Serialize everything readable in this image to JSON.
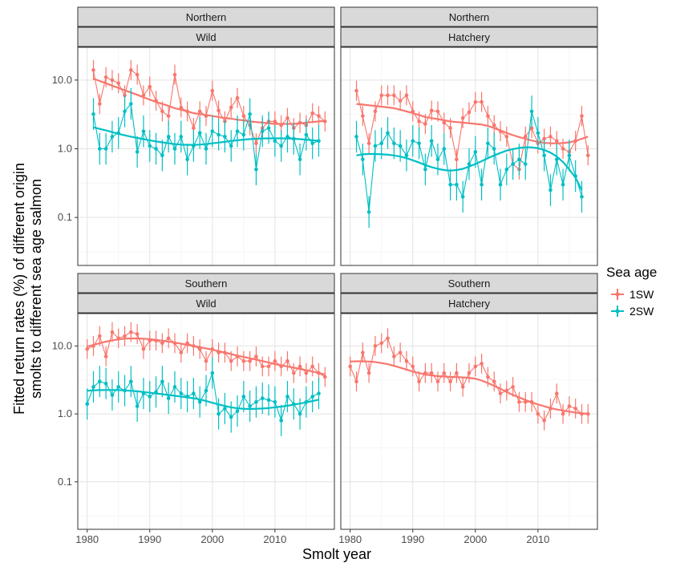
{
  "chart_data": {
    "type": "line",
    "ylabel_lines": [
      "Fitted return rates (%) of different origin",
      "smolts to different sea age salmon"
    ],
    "xlabel": "Smolt year",
    "x_ticks": [
      1980,
      1990,
      2000,
      2010
    ],
    "y_ticks": [
      0.1,
      1.0,
      10.0
    ],
    "y_tick_labels": [
      "0.1",
      "1.0",
      "10.0"
    ],
    "y_scale": "log10",
    "xlim": [
      1978.5,
      2019.5
    ],
    "ylim": [
      0.02,
      30
    ],
    "legend": {
      "title": "Sea age",
      "position": "right",
      "entries": [
        {
          "label": "1SW",
          "color": "#F8766D"
        },
        {
          "label": "2SW",
          "color": "#00BFC4"
        }
      ]
    },
    "panels": [
      {
        "region": "Northern",
        "origin": "Wild",
        "series": [
          {
            "name": "1SW",
            "color": "#F8766D",
            "x": [
              1981,
              1982,
              1983,
              1984,
              1985,
              1986,
              1987,
              1988,
              1989,
              1990,
              1991,
              1992,
              1993,
              1994,
              1995,
              1996,
              1997,
              1998,
              1999,
              2000,
              2001,
              2002,
              2003,
              2004,
              2005,
              2006,
              2007,
              2008,
              2009,
              2010,
              2011,
              2012,
              2013,
              2014,
              2015,
              2016,
              2017,
              2018
            ],
            "y": [
              14,
              4.5,
              11,
              10,
              9,
              6,
              14,
              12,
              6,
              8,
              5,
              3.5,
              3,
              12,
              4,
              3.5,
              2,
              3.5,
              3,
              7,
              3.6,
              2.5,
              4,
              5.5,
              3,
              2.2,
              1.2,
              2,
              2.5,
              2.5,
              2.2,
              2.8,
              2,
              2.4,
              2.2,
              3.3,
              3,
              2.5
            ],
            "trend": [
              10.5,
              9.7,
              9.0,
              8.3,
              7.7,
              7.1,
              6.6,
              6.1,
              5.6,
              5.2,
              4.8,
              4.5,
              4.2,
              3.9,
              3.7,
              3.5,
              3.3,
              3.2,
              3.1,
              3.0,
              2.9,
              2.8,
              2.75,
              2.65,
              2.6,
              2.5,
              2.45,
              2.4,
              2.35,
              2.3,
              2.3,
              2.3,
              2.3,
              2.35,
              2.4,
              2.45,
              2.5,
              2.55
            ]
          },
          {
            "name": "2SW",
            "color": "#00BFC4",
            "x": [
              1981,
              1982,
              1983,
              1984,
              1985,
              1986,
              1987,
              1988,
              1989,
              1990,
              1991,
              1992,
              1993,
              1994,
              1995,
              1996,
              1997,
              1998,
              1999,
              2000,
              2001,
              2002,
              2003,
              2004,
              2005,
              2006,
              2007,
              2008,
              2009,
              2010,
              2011,
              2012,
              2013,
              2014,
              2015,
              2016,
              2017
            ],
            "y": [
              3.2,
              1.0,
              1.0,
              1.5,
              1.7,
              3.5,
              4.5,
              0.9,
              1.8,
              1.1,
              1.0,
              0.8,
              1.5,
              1.0,
              1.5,
              0.7,
              1.1,
              1.7,
              1.0,
              1.8,
              1.6,
              1.5,
              1.1,
              1.8,
              1.6,
              3.2,
              0.5,
              1.8,
              2.0,
              1.3,
              1.1,
              1.5,
              1.4,
              0.7,
              1.6,
              1.2,
              1.3
            ],
            "trend": [
              2.05,
              1.95,
              1.85,
              1.75,
              1.65,
              1.57,
              1.5,
              1.44,
              1.38,
              1.33,
              1.28,
              1.24,
              1.2,
              1.17,
              1.15,
              1.14,
              1.14,
              1.15,
              1.17,
              1.2,
              1.23,
              1.26,
              1.3,
              1.33,
              1.36,
              1.38,
              1.4,
              1.41,
              1.42,
              1.42,
              1.42,
              1.41,
              1.4,
              1.38,
              1.36,
              1.33,
              1.3
            ]
          }
        ]
      },
      {
        "region": "Northern",
        "origin": "Hatchery",
        "series": [
          {
            "name": "1SW",
            "color": "#F8766D",
            "x": [
              1981,
              1982,
              1983,
              1984,
              1985,
              1986,
              1987,
              1988,
              1989,
              1990,
              1991,
              1992,
              1993,
              1994,
              1995,
              1996,
              1997,
              1998,
              1999,
              2000,
              2001,
              2002,
              2003,
              2004,
              2005,
              2006,
              2007,
              2008,
              2009,
              2010,
              2011,
              2012,
              2013,
              2014,
              2015,
              2016,
              2017,
              2018
            ],
            "y": [
              7,
              3,
              1.2,
              3.5,
              6,
              6,
              6,
              5,
              6,
              3.5,
              2.5,
              2.3,
              3.6,
              3.5,
              2.4,
              2.0,
              0.7,
              2.8,
              3.4,
              4.8,
              4.8,
              3.0,
              2.2,
              1.8,
              1.5,
              0.6,
              0.5,
              1.5,
              2.0,
              1.2,
              1.4,
              1.5,
              1.3,
              1.0,
              0.9,
              1.3,
              3.0,
              0.8
            ],
            "trend": [
              4.5,
              4.4,
              4.3,
              4.2,
              4.1,
              4.0,
              3.9,
              3.7,
              3.5,
              3.3,
              3.1,
              2.9,
              2.8,
              2.7,
              2.6,
              2.5,
              2.45,
              2.4,
              2.35,
              2.3,
              2.25,
              2.15,
              2.0,
              1.85,
              1.7,
              1.58,
              1.48,
              1.4,
              1.32,
              1.26,
              1.22,
              1.2,
              1.2,
              1.21,
              1.24,
              1.3,
              1.4,
              1.5
            ]
          },
          {
            "name": "2SW",
            "color": "#00BFC4",
            "x": [
              1981,
              1982,
              1983,
              1984,
              1985,
              1986,
              1987,
              1988,
              1989,
              1990,
              1991,
              1992,
              1993,
              1994,
              1995,
              1996,
              1997,
              1998,
              1999,
              2000,
              2001,
              2002,
              2003,
              2004,
              2005,
              2006,
              2007,
              2008,
              2009,
              2010,
              2011,
              2012,
              2013,
              2014,
              2015,
              2016,
              2017
            ],
            "y": [
              1.5,
              0.7,
              0.12,
              1.1,
              1.2,
              1.7,
              1.2,
              1.1,
              0.8,
              1.3,
              1.2,
              0.5,
              1.3,
              0.7,
              1.0,
              0.3,
              0.3,
              0.2,
              0.6,
              0.9,
              0.3,
              1.2,
              1.0,
              0.3,
              0.5,
              0.6,
              0.7,
              0.6,
              3.5,
              1.7,
              0.8,
              0.25,
              0.7,
              0.3,
              0.8,
              0.4,
              0.2
            ],
            "trend": [
              0.8,
              0.83,
              0.84,
              0.84,
              0.83,
              0.82,
              0.8,
              0.77,
              0.73,
              0.68,
              0.63,
              0.58,
              0.54,
              0.51,
              0.49,
              0.48,
              0.49,
              0.51,
              0.55,
              0.6,
              0.66,
              0.73,
              0.8,
              0.87,
              0.94,
              0.99,
              1.03,
              1.05,
              1.05,
              1.02,
              0.96,
              0.88,
              0.77,
              0.64,
              0.5,
              0.38,
              0.25
            ]
          }
        ]
      },
      {
        "region": "Southern",
        "origin": "Wild",
        "series": [
          {
            "name": "1SW",
            "color": "#F8766D",
            "x": [
              1980,
              1981,
              1982,
              1983,
              1984,
              1985,
              1986,
              1987,
              1988,
              1989,
              1990,
              1991,
              1992,
              1993,
              1994,
              1995,
              1996,
              1997,
              1998,
              1999,
              2000,
              2001,
              2002,
              2003,
              2004,
              2005,
              2006,
              2007,
              2008,
              2009,
              2010,
              2011,
              2012,
              2013,
              2014,
              2015,
              2016,
              2017,
              2018
            ],
            "y": [
              9,
              10,
              14,
              7,
              16,
              13,
              14,
              16,
              15,
              9,
              12,
              12,
              11,
              13,
              11,
              8,
              11,
              10,
              9,
              6,
              9,
              8,
              8,
              6,
              7,
              6,
              6,
              7,
              5,
              5,
              6,
              5,
              6,
              4,
              5,
              4,
              5,
              4,
              3.5
            ],
            "trend": [
              9.8,
              10.4,
              11.0,
              11.6,
              12.1,
              12.5,
              12.8,
              12.9,
              12.9,
              12.8,
              12.6,
              12.3,
              12.0,
              11.6,
              11.2,
              10.8,
              10.4,
              10.0,
              9.6,
              9.2,
              8.8,
              8.4,
              8.0,
              7.6,
              7.2,
              6.9,
              6.6,
              6.3,
              6.0,
              5.7,
              5.4,
              5.2,
              5.0,
              4.8,
              4.6,
              4.4,
              4.2,
              4.0,
              3.8
            ]
          },
          {
            "name": "2SW",
            "color": "#00BFC4",
            "x": [
              1980,
              1981,
              1982,
              1983,
              1984,
              1985,
              1986,
              1987,
              1988,
              1989,
              1990,
              1991,
              1992,
              1993,
              1994,
              1995,
              1996,
              1997,
              1998,
              1999,
              2000,
              2001,
              2002,
              2003,
              2004,
              2005,
              2006,
              2007,
              2008,
              2009,
              2010,
              2011,
              2012,
              2013,
              2014,
              2015,
              2016,
              2017
            ],
            "y": [
              1.4,
              2.5,
              3.0,
              2.8,
              1.9,
              2.5,
              2.2,
              3.0,
              1.3,
              2.0,
              1.8,
              2.1,
              3.0,
              1.7,
              2.5,
              2.0,
              1.8,
              2.0,
              1.5,
              2.2,
              4.0,
              1.0,
              1.2,
              0.9,
              1.1,
              1.8,
              1.3,
              1.5,
              1.7,
              1.6,
              1.5,
              0.8,
              1.8,
              1.4,
              1.0,
              1.5,
              1.8,
              2.0
            ],
            "trend": [
              2.2,
              2.22,
              2.24,
              2.25,
              2.25,
              2.24,
              2.22,
              2.19,
              2.15,
              2.1,
              2.05,
              2.0,
              1.95,
              1.9,
              1.85,
              1.8,
              1.75,
              1.7,
              1.63,
              1.55,
              1.46,
              1.38,
              1.31,
              1.25,
              1.21,
              1.19,
              1.18,
              1.19,
              1.2,
              1.22,
              1.25,
              1.28,
              1.32,
              1.37,
              1.42,
              1.48,
              1.55,
              1.62
            ]
          }
        ]
      },
      {
        "region": "Southern",
        "origin": "Hatchery",
        "series": [
          {
            "name": "1SW",
            "color": "#F8766D",
            "x": [
              1980,
              1981,
              1982,
              1983,
              1984,
              1985,
              1986,
              1987,
              1988,
              1989,
              1990,
              1991,
              1992,
              1993,
              1994,
              1995,
              1996,
              1997,
              1998,
              1999,
              2000,
              2001,
              2002,
              2003,
              2004,
              2005,
              2006,
              2007,
              2008,
              2009,
              2010,
              2011,
              2012,
              2013,
              2014,
              2015,
              2016,
              2017,
              2018
            ],
            "y": [
              5,
              3,
              8,
              4,
              10,
              11,
              13,
              7,
              8,
              6,
              5,
              3,
              4,
              4,
              3,
              4,
              3,
              4,
              2.5,
              4,
              5,
              5.5,
              3.5,
              3,
              2,
              2.2,
              2.5,
              1.5,
              1.5,
              1.5,
              1.0,
              0.8,
              1.2,
              2.0,
              1.0,
              1.3,
              1.2,
              1.0,
              1.0
            ],
            "trend": [
              5.9,
              5.95,
              5.95,
              5.9,
              5.8,
              5.6,
              5.4,
              5.1,
              4.8,
              4.5,
              4.2,
              4.0,
              3.8,
              3.7,
              3.6,
              3.55,
              3.5,
              3.48,
              3.45,
              3.4,
              3.3,
              3.1,
              2.85,
              2.6,
              2.35,
              2.1,
              1.9,
              1.75,
              1.6,
              1.48,
              1.38,
              1.3,
              1.22,
              1.16,
              1.12,
              1.08,
              1.05,
              1.02,
              1.0
            ]
          }
        ]
      }
    ]
  }
}
